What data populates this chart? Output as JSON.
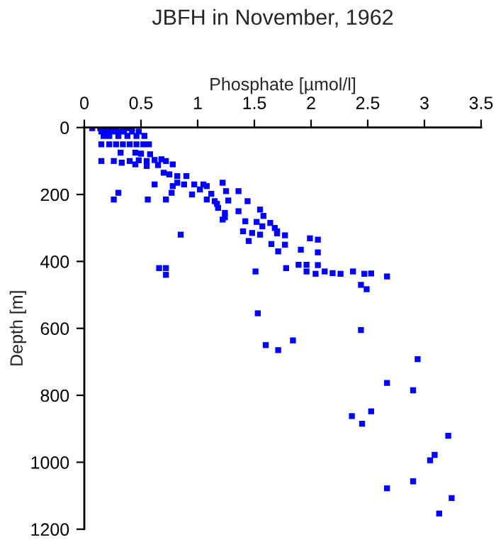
{
  "chart_data": {
    "type": "scatter",
    "title": "JBFH in November, 1962",
    "xlabel": "Phosphate [µmol/l]",
    "ylabel": "Depth [m]",
    "xlim": [
      0,
      3.5
    ],
    "xticks": [
      0,
      0.5,
      1,
      1.5,
      2,
      2.5,
      3,
      3.5
    ],
    "ylim": [
      1200,
      0
    ],
    "yticks": [
      0,
      200,
      400,
      600,
      800,
      1000,
      1200
    ],
    "marker": "square",
    "grid": false,
    "legend": false,
    "series": [
      {
        "color": "#0000ff",
        "x": [
          0.07,
          0.14,
          0.18,
          0.23,
          0.28,
          0.34,
          0.38,
          0.42,
          0.15,
          0.2,
          0.25,
          0.3,
          0.35,
          0.42,
          0.48,
          0.17,
          0.22,
          0.3,
          0.38,
          0.46,
          0.53,
          0.15,
          0.22,
          0.28,
          0.34,
          0.4,
          0.46,
          0.52,
          0.57,
          0.32,
          0.45,
          0.5,
          0.58,
          0.15,
          0.26,
          0.33,
          0.4,
          0.48,
          0.55,
          0.62,
          0.68,
          0.72,
          0.45,
          0.55,
          0.65,
          0.78,
          0.7,
          0.75,
          0.82,
          0.9,
          0.62,
          0.78,
          0.82,
          0.88,
          0.97,
          1.05,
          1.08,
          1.22,
          1.02,
          0.3,
          0.77,
          0.95,
          1.12,
          1.25,
          1.36,
          0.26,
          0.56,
          0.72,
          1.08,
          1.15,
          1.17,
          1.27,
          1.44,
          1.18,
          1.24,
          1.36,
          1.55,
          1.22,
          1.42,
          1.52,
          1.64,
          1.68,
          1.57,
          1.7,
          0.85,
          0.66,
          0.72,
          0.72,
          1.24,
          1.58,
          1.4,
          1.48,
          1.55,
          1.45,
          1.65,
          1.7,
          1.77,
          1.77,
          1.71,
          1.91,
          1.99,
          2.06,
          2.06,
          2.06,
          1.51,
          1.78,
          1.89,
          1.96,
          1.96,
          2.04,
          2.12,
          2.19,
          2.26,
          2.37,
          2.44,
          2.47,
          2.53,
          2.49,
          2.67,
          1.53,
          2.44,
          1.6,
          1.71,
          1.84,
          2.94,
          2.67,
          2.9,
          2.36,
          2.53,
          2.45,
          3.21,
          3.09,
          3.05,
          2.9,
          2.67,
          3.24,
          3.13
        ],
        "values": [
          2,
          2,
          2,
          2,
          2,
          2,
          2,
          2,
          12,
          12,
          12,
          12,
          12,
          12,
          12,
          25,
          25,
          25,
          25,
          25,
          25,
          50,
          50,
          50,
          50,
          50,
          50,
          50,
          50,
          75,
          75,
          78,
          80,
          100,
          100,
          105,
          100,
          98,
          100,
          97,
          95,
          100,
          110,
          115,
          112,
          110,
          135,
          140,
          145,
          145,
          170,
          175,
          165,
          170,
          170,
          170,
          175,
          165,
          185,
          195,
          195,
          200,
          198,
          190,
          190,
          215,
          215,
          215,
          215,
          220,
          228,
          218,
          220,
          240,
          255,
          250,
          245,
          275,
          280,
          282,
          285,
          300,
          295,
          310,
          320,
          420,
          420,
          440,
          268,
          264,
          310,
          315,
          320,
          339,
          348,
          316,
          322,
          350,
          370,
          365,
          331,
          335,
          373,
          411,
          430,
          420,
          410,
          410,
          430,
          437,
          430,
          435,
          437,
          430,
          470,
          437,
          436,
          483,
          445,
          555,
          605,
          650,
          665,
          636,
          692,
          763,
          785,
          862,
          848,
          885,
          921,
          978,
          994,
          1057,
          1078,
          1107,
          1153
        ]
      }
    ]
  }
}
